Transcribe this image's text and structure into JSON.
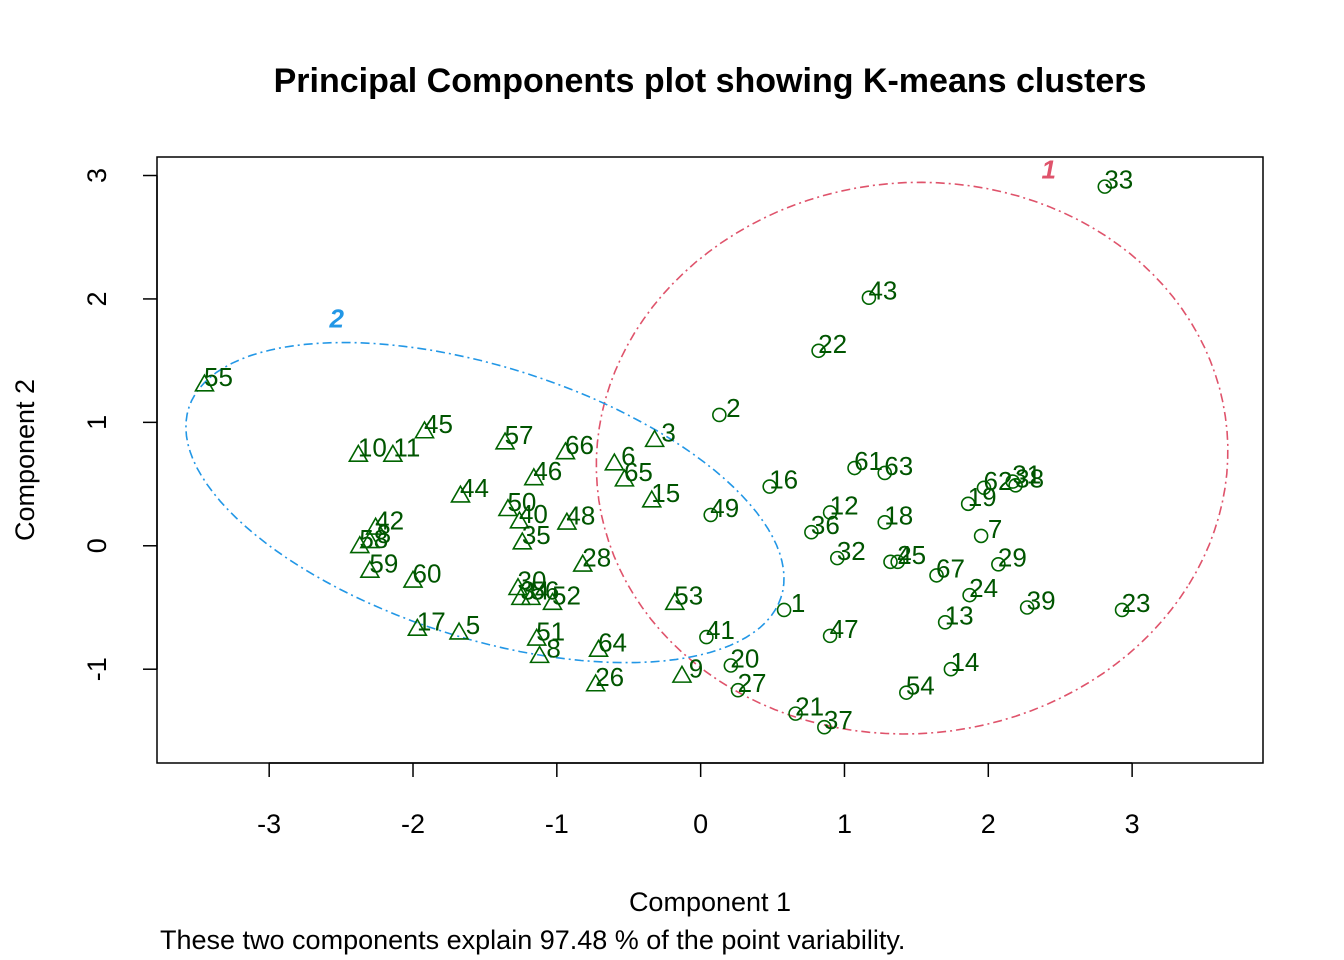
{
  "chart_data": {
    "type": "scatter",
    "title": "Principal Components plot showing K-means clusters",
    "xlabel": "Component 1",
    "ylabel": "Component 2",
    "subtitle": "These two components explain 97.48 % of the point variability.",
    "xlim": [
      -3.78,
      3.91
    ],
    "ylim": [
      -1.76,
      3.15
    ],
    "x_ticks": [
      -3,
      -2,
      -1,
      0,
      1,
      2,
      3
    ],
    "y_ticks": [
      -1,
      0,
      1,
      2,
      3
    ],
    "x_tick_labels": [
      "-3",
      "-2",
      "-1",
      "0",
      "1",
      "2",
      "3"
    ],
    "y_tick_labels": [
      "-1",
      "0",
      "1",
      "2",
      "3"
    ],
    "grid": false,
    "colors": {
      "points": "#006400",
      "cluster_1": "#DF536B",
      "cluster_2": "#2297E6"
    },
    "clusters": [
      {
        "label": "1",
        "symbol": "circle",
        "ellipse": {
          "cx": 1.47,
          "cy": 0.71,
          "rx": 2.18,
          "ry": 2.25,
          "angle": -28
        },
        "label_x": 2.42,
        "label_y": 3.05
      },
      {
        "label": "2",
        "symbol": "triangle",
        "ellipse": {
          "cx": -1.5,
          "cy": 0.35,
          "rx": 2.2,
          "ry": 1.08,
          "angle": -22
        },
        "label_x": -2.53,
        "label_y": 1.84
      }
    ],
    "points": [
      {
        "label": "33",
        "x": 2.81,
        "y": 2.91,
        "cluster": 1
      },
      {
        "label": "43",
        "x": 1.17,
        "y": 2.01,
        "cluster": 1
      },
      {
        "label": "22",
        "x": 0.82,
        "y": 1.58,
        "cluster": 1
      },
      {
        "label": "2",
        "x": 0.13,
        "y": 1.06,
        "cluster": 1
      },
      {
        "label": "16",
        "x": 0.48,
        "y": 0.48,
        "cluster": 1
      },
      {
        "label": "61",
        "x": 1.07,
        "y": 0.63,
        "cluster": 1
      },
      {
        "label": "63",
        "x": 1.28,
        "y": 0.59,
        "cluster": 1
      },
      {
        "label": "62",
        "x": 1.97,
        "y": 0.47,
        "cluster": 1
      },
      {
        "label": "31",
        "x": 2.17,
        "y": 0.52,
        "cluster": 1
      },
      {
        "label": "38",
        "x": 2.19,
        "y": 0.49,
        "cluster": 1
      },
      {
        "label": "19",
        "x": 1.86,
        "y": 0.34,
        "cluster": 1
      },
      {
        "label": "12",
        "x": 0.9,
        "y": 0.27,
        "cluster": 1
      },
      {
        "label": "18",
        "x": 1.28,
        "y": 0.19,
        "cluster": 1
      },
      {
        "label": "36",
        "x": 0.77,
        "y": 0.11,
        "cluster": 1
      },
      {
        "label": "7",
        "x": 1.95,
        "y": 0.08,
        "cluster": 1
      },
      {
        "label": "49",
        "x": 0.07,
        "y": 0.25,
        "cluster": 1
      },
      {
        "label": "32",
        "x": 0.95,
        "y": -0.1,
        "cluster": 1
      },
      {
        "label": "4",
        "x": 1.32,
        "y": -0.13,
        "cluster": 1
      },
      {
        "label": "25",
        "x": 1.37,
        "y": -0.13,
        "cluster": 1
      },
      {
        "label": "67",
        "x": 1.64,
        "y": -0.24,
        "cluster": 1
      },
      {
        "label": "29",
        "x": 2.07,
        "y": -0.15,
        "cluster": 1
      },
      {
        "label": "24",
        "x": 1.87,
        "y": -0.4,
        "cluster": 1
      },
      {
        "label": "39",
        "x": 2.27,
        "y": -0.5,
        "cluster": 1
      },
      {
        "label": "23",
        "x": 2.93,
        "y": -0.52,
        "cluster": 1
      },
      {
        "label": "13",
        "x": 1.7,
        "y": -0.62,
        "cluster": 1
      },
      {
        "label": "1",
        "x": 0.58,
        "y": -0.52,
        "cluster": 1
      },
      {
        "label": "47",
        "x": 0.9,
        "y": -0.73,
        "cluster": 1
      },
      {
        "label": "41",
        "x": 0.04,
        "y": -0.74,
        "cluster": 1
      },
      {
        "label": "20",
        "x": 0.21,
        "y": -0.97,
        "cluster": 1
      },
      {
        "label": "14",
        "x": 1.74,
        "y": -1.0,
        "cluster": 1
      },
      {
        "label": "27",
        "x": 0.26,
        "y": -1.17,
        "cluster": 1
      },
      {
        "label": "54",
        "x": 1.43,
        "y": -1.19,
        "cluster": 1
      },
      {
        "label": "21",
        "x": 0.66,
        "y": -1.36,
        "cluster": 1
      },
      {
        "label": "37",
        "x": 0.86,
        "y": -1.47,
        "cluster": 1
      },
      {
        "label": "55",
        "x": -3.45,
        "y": 1.31,
        "cluster": 2
      },
      {
        "label": "45",
        "x": -1.92,
        "y": 0.93,
        "cluster": 2
      },
      {
        "label": "10",
        "x": -2.38,
        "y": 0.74,
        "cluster": 2
      },
      {
        "label": "11",
        "x": -2.14,
        "y": 0.74,
        "cluster": 2
      },
      {
        "label": "57",
        "x": -1.36,
        "y": 0.84,
        "cluster": 2
      },
      {
        "label": "66",
        "x": -0.94,
        "y": 0.76,
        "cluster": 2
      },
      {
        "label": "3",
        "x": -0.32,
        "y": 0.86,
        "cluster": 2
      },
      {
        "label": "6",
        "x": -0.6,
        "y": 0.67,
        "cluster": 2
      },
      {
        "label": "46",
        "x": -1.16,
        "y": 0.55,
        "cluster": 2
      },
      {
        "label": "65",
        "x": -0.53,
        "y": 0.54,
        "cluster": 2
      },
      {
        "label": "44",
        "x": -1.67,
        "y": 0.41,
        "cluster": 2
      },
      {
        "label": "15",
        "x": -0.34,
        "y": 0.37,
        "cluster": 2
      },
      {
        "label": "50",
        "x": -1.34,
        "y": 0.3,
        "cluster": 2
      },
      {
        "label": "40",
        "x": -1.26,
        "y": 0.2,
        "cluster": 2
      },
      {
        "label": "48",
        "x": -0.93,
        "y": 0.19,
        "cluster": 2
      },
      {
        "label": "42",
        "x": -2.26,
        "y": 0.15,
        "cluster": 2
      },
      {
        "label": "35",
        "x": -1.24,
        "y": 0.03,
        "cluster": 2
      },
      {
        "label": "58",
        "x": -2.37,
        "y": 0.0,
        "cluster": 2
      },
      {
        "label": "8",
        "x": -2.3,
        "y": 0.04,
        "cluster": 2
      },
      {
        "label": "28",
        "x": -0.82,
        "y": -0.15,
        "cluster": 2
      },
      {
        "label": "59",
        "x": -2.3,
        "y": -0.2,
        "cluster": 2
      },
      {
        "label": "60",
        "x": -2.0,
        "y": -0.28,
        "cluster": 2
      },
      {
        "label": "30",
        "x": -1.27,
        "y": -0.34,
        "cluster": 2
      },
      {
        "label": "52",
        "x": -1.03,
        "y": -0.46,
        "cluster": 2
      },
      {
        "label": "34",
        "x": -1.25,
        "y": -0.42,
        "cluster": 2
      },
      {
        "label": "56",
        "x": -1.18,
        "y": -0.42,
        "cluster": 2
      },
      {
        "label": "53",
        "x": -0.18,
        "y": -0.46,
        "cluster": 2
      },
      {
        "label": "17",
        "x": -1.97,
        "y": -0.67,
        "cluster": 2
      },
      {
        "label": "5",
        "x": -1.68,
        "y": -0.7,
        "cluster": 2
      },
      {
        "label": "51",
        "x": -1.14,
        "y": -0.75,
        "cluster": 2
      },
      {
        "label": "64",
        "x": -0.71,
        "y": -0.84,
        "cluster": 2
      },
      {
        "label": "8",
        "x": -1.12,
        "y": -0.89,
        "cluster": 2
      },
      {
        "label": "9",
        "x": -0.13,
        "y": -1.05,
        "cluster": 2
      },
      {
        "label": "26",
        "x": -0.73,
        "y": -1.12,
        "cluster": 2
      }
    ]
  }
}
